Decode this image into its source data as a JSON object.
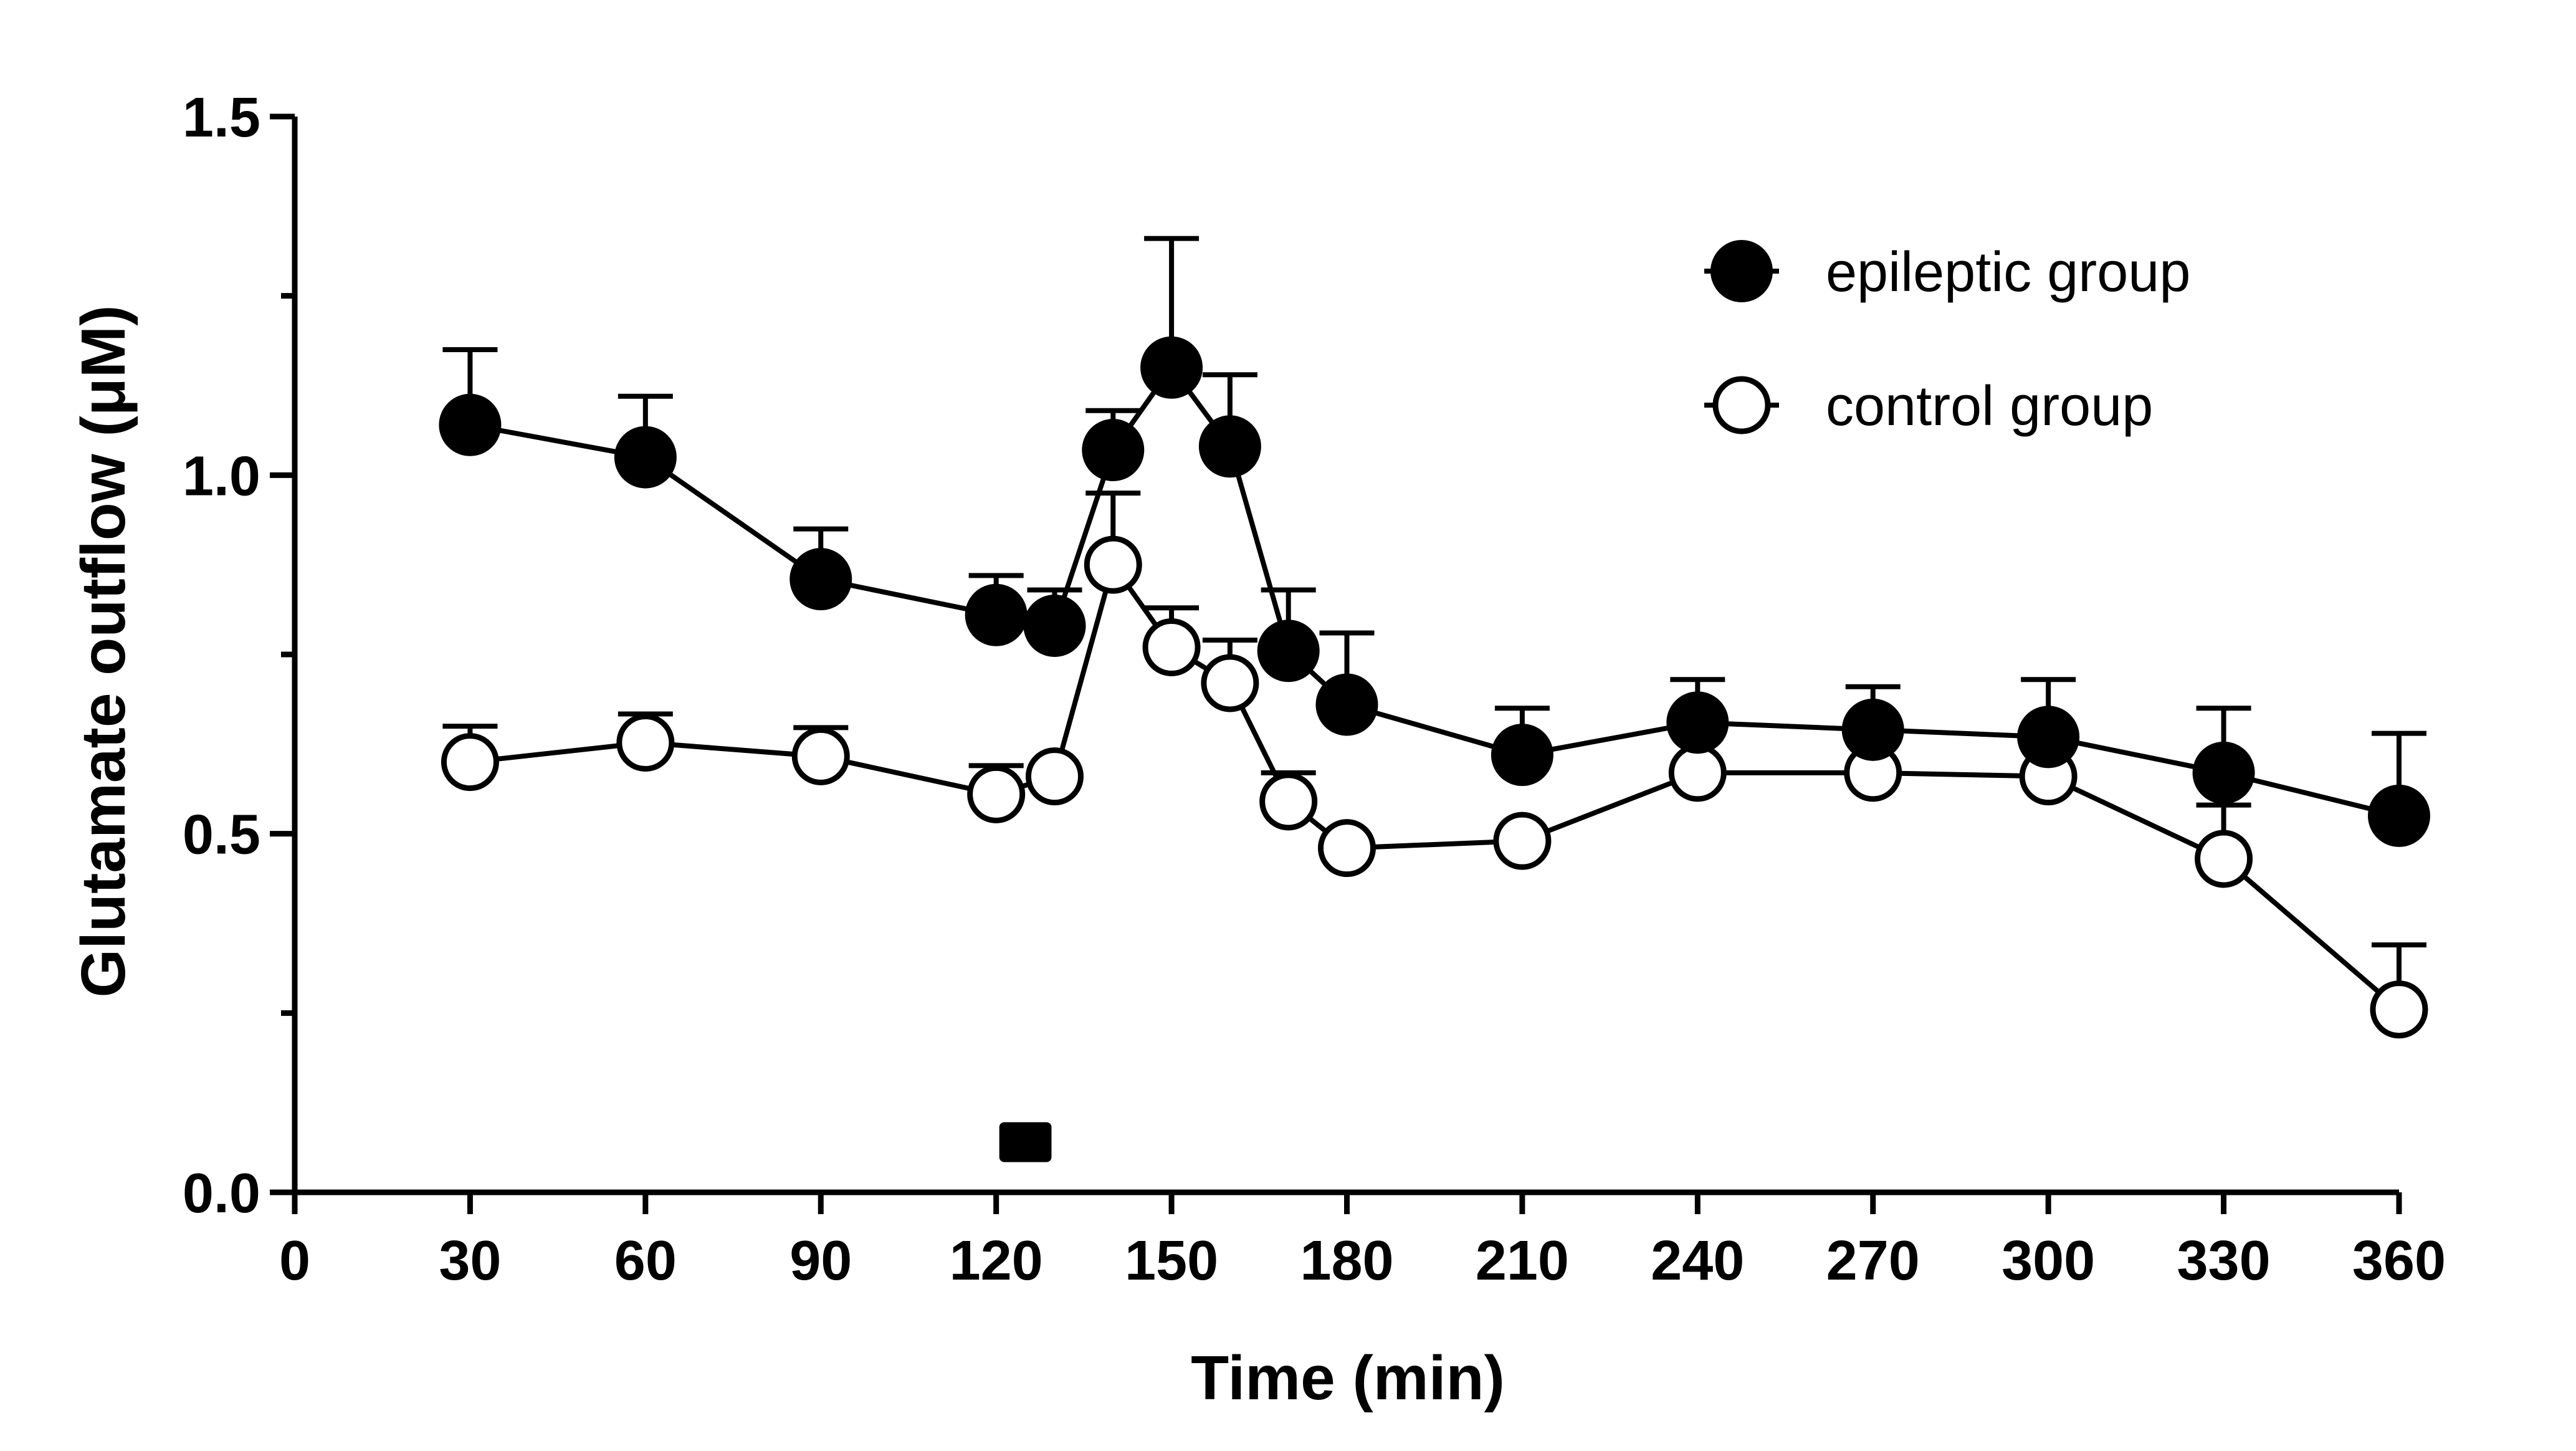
{
  "chart_data": {
    "type": "line",
    "title": "",
    "xlabel": "Time (min)",
    "ylabel": "Glutamate outflow (μM)",
    "xlim": [
      0,
      360
    ],
    "ylim": [
      0,
      1.5
    ],
    "xticks": [
      "0",
      "30",
      "60",
      "90",
      "120",
      "150",
      "180",
      "210",
      "240",
      "270",
      "300",
      "330",
      "360"
    ],
    "yticks": [
      "0.0",
      "0.5",
      "1.0",
      "1.5"
    ],
    "grid": false,
    "legend_position": "top-right",
    "stimulus_marker": {
      "x_start": 120,
      "x_end": 130,
      "y": 0.07
    },
    "series": [
      {
        "name": "epileptic group",
        "marker": "filled-circle",
        "x": [
          30,
          60,
          90,
          120,
          130,
          140,
          150,
          160,
          170,
          180,
          210,
          240,
          270,
          300,
          330,
          360
        ],
        "values": [
          1.07,
          1.025,
          0.855,
          0.805,
          0.79,
          1.035,
          1.15,
          1.04,
          0.755,
          0.68,
          0.61,
          0.655,
          0.645,
          0.635,
          0.585,
          0.525
        ],
        "errors": [
          0.105,
          0.085,
          0.07,
          0.055,
          0.05,
          0.055,
          0.18,
          0.1,
          0.085,
          0.1,
          0.065,
          0.06,
          0.06,
          0.08,
          0.09,
          0.115
        ]
      },
      {
        "name": "control group",
        "marker": "open-circle",
        "x": [
          30,
          60,
          90,
          120,
          130,
          140,
          150,
          160,
          170,
          180,
          210,
          240,
          270,
          300,
          330,
          360
        ],
        "values": [
          0.6,
          0.627,
          0.608,
          0.555,
          0.58,
          0.875,
          0.76,
          0.71,
          0.545,
          0.48,
          0.49,
          0.585,
          0.585,
          0.58,
          0.465,
          0.255
        ],
        "errors": [
          0.05,
          0.04,
          0.04,
          0.04,
          0.0,
          0.1,
          0.055,
          0.06,
          0.04,
          0.0,
          0.0,
          0.0,
          0.0,
          0.0,
          0.075,
          0.09
        ]
      }
    ]
  }
}
